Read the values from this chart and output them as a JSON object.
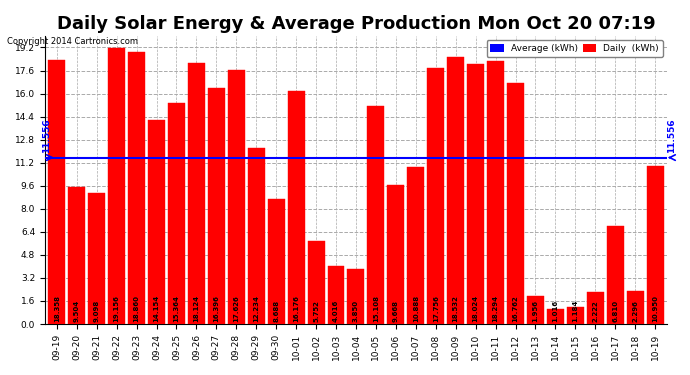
{
  "title": "Daily Solar Energy & Average Production Mon Oct 20 07:19",
  "copyright": "Copyright 2014 Cartronics.com",
  "average_value": 11.556,
  "average_label": "11.556",
  "categories": [
    "09-19",
    "09-20",
    "09-21",
    "09-22",
    "09-23",
    "09-24",
    "09-25",
    "09-26",
    "09-27",
    "09-28",
    "09-29",
    "09-30",
    "10-01",
    "10-02",
    "10-03",
    "10-04",
    "10-05",
    "10-06",
    "10-07",
    "10-08",
    "10-09",
    "10-10",
    "10-11",
    "10-12",
    "10-13",
    "10-14",
    "10-15",
    "10-16",
    "10-17",
    "10-18",
    "10-19"
  ],
  "values": [
    18.358,
    9.504,
    9.098,
    19.156,
    18.86,
    14.154,
    15.364,
    18.124,
    16.396,
    17.626,
    12.234,
    8.688,
    16.176,
    5.752,
    4.016,
    3.85,
    15.108,
    9.668,
    10.888,
    17.756,
    18.532,
    18.024,
    18.294,
    16.762,
    1.956,
    1.016,
    1.184,
    2.222,
    6.81,
    2.296,
    10.95
  ],
  "bar_color": "#FF0000",
  "bar_edge_color": "#FF0000",
  "avg_line_color": "#0000FF",
  "background_color": "#FFFFFF",
  "plot_bg_color": "#FFFFFF",
  "grid_color": "#AAAAAA",
  "ylim": [
    0,
    20.0
  ],
  "yticks": [
    0.0,
    1.6,
    3.2,
    4.8,
    6.4,
    8.0,
    9.6,
    11.2,
    12.8,
    14.4,
    16.0,
    17.6,
    19.2
  ],
  "title_fontsize": 13,
  "tick_fontsize": 6.5,
  "legend_avg_color": "#0000FF",
  "legend_daily_color": "#FF0000",
  "legend_avg_label": "Average (kWh)",
  "legend_daily_label": "Daily  (kWh)"
}
